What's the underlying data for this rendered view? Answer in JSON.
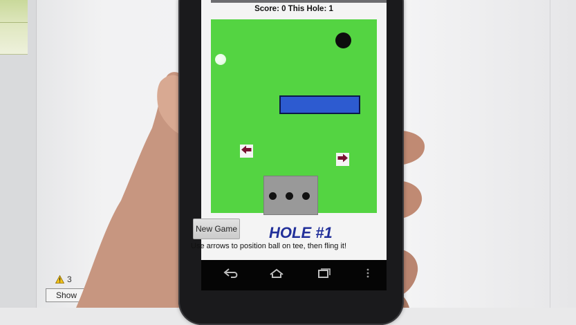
{
  "game": {
    "score_line": "Score: 0  This Hole: 1",
    "new_game_label": "New Game",
    "hole_label": "HOLE #1",
    "instructions": "Use arrows to position ball on tee, then fling it!"
  },
  "monitor": {
    "warning_count": "3",
    "show_button_label": "Show"
  },
  "icons": {
    "hole": "hole-icon",
    "arrow_left": "arrow-left-icon",
    "arrow_right": "arrow-right-icon",
    "back": "back-icon",
    "home": "home-icon",
    "recent_apps": "recent-apps-icon",
    "more": "more-icon",
    "warning": "warning-icon"
  },
  "colors": {
    "green": "#54d442",
    "barrier": "#2d5bd0",
    "hole_label": "#22309a",
    "tee_pad": "#999999"
  }
}
